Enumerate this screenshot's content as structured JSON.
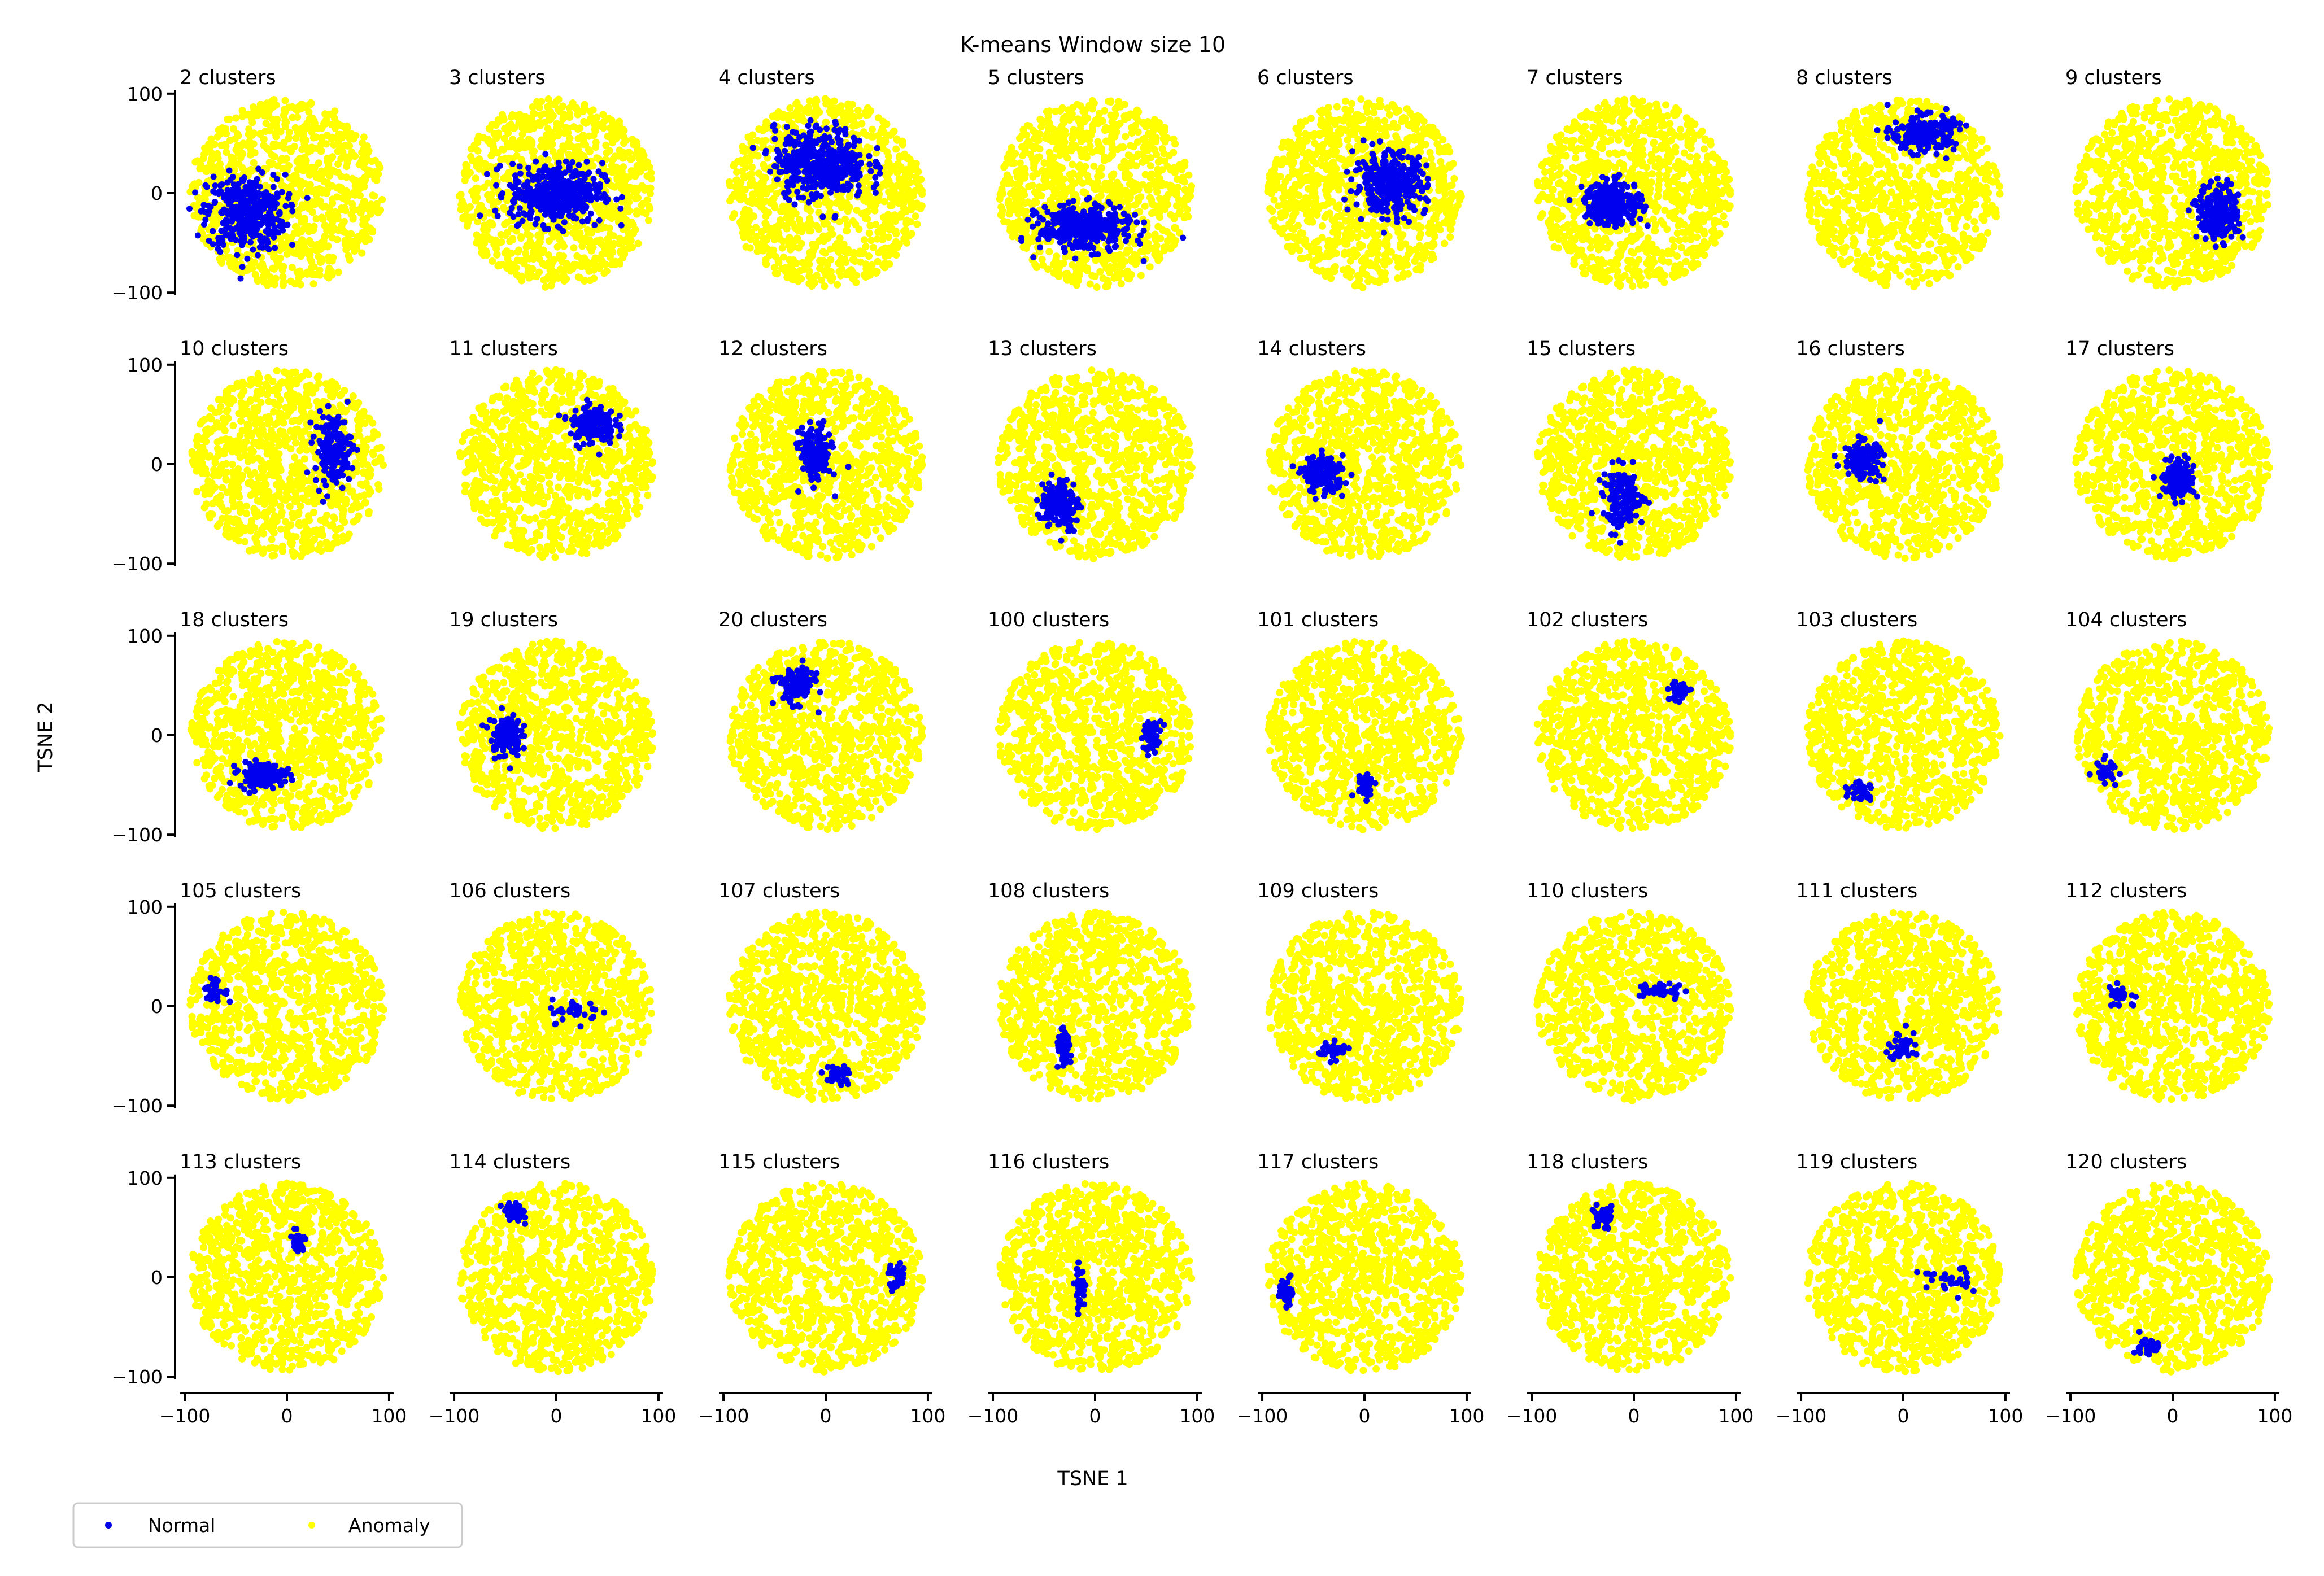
{
  "chart_data": {
    "type": "scatter",
    "title": "K-means Window size 10",
    "xlabel": "TSNE 1",
    "ylabel": "TSNE 2",
    "xlim": [
      -105,
      105
    ],
    "ylim": [
      -105,
      105
    ],
    "xticks": [
      -100,
      0,
      100
    ],
    "yticks": [
      -100,
      0,
      100
    ],
    "xtick_labels": [
      "−100",
      "0",
      "100"
    ],
    "ytick_labels": [
      "−100",
      "0",
      "100"
    ],
    "grid": false,
    "rows": 5,
    "cols": 8,
    "legend": {
      "placement": "bottom-left",
      "entries": [
        {
          "label": "Normal",
          "color": "#0000ee"
        },
        {
          "label": "Anomaly",
          "color": "#ffff00"
        }
      ]
    },
    "series_colors": {
      "Normal": "#0000ee",
      "Anomaly": "#ffff00"
    },
    "anomaly_cloud": {
      "center": [
        0,
        0
      ],
      "radius": 95,
      "approx_points": 1000
    },
    "panels": [
      {
        "label": "2 clusters",
        "normal": {
          "center": [
            -40,
            -20
          ],
          "spread": [
            38,
            38
          ],
          "count": 380
        }
      },
      {
        "label": "3 clusters",
        "normal": {
          "center": [
            0,
            0
          ],
          "spread": [
            45,
            30
          ],
          "count": 420
        }
      },
      {
        "label": "4 clusters",
        "normal": {
          "center": [
            -5,
            30
          ],
          "spread": [
            45,
            35
          ],
          "count": 420
        }
      },
      {
        "label": "5 clusters",
        "normal": {
          "center": [
            -10,
            -35
          ],
          "spread": [
            45,
            22
          ],
          "count": 360
        }
      },
      {
        "label": "6 clusters",
        "normal": {
          "center": [
            25,
            10
          ],
          "spread": [
            35,
            30
          ],
          "count": 320
        }
      },
      {
        "label": "7 clusters",
        "normal": {
          "center": [
            -20,
            -10
          ],
          "spread": [
            28,
            22
          ],
          "count": 260
        }
      },
      {
        "label": "8 clusters",
        "normal": {
          "center": [
            20,
            60
          ],
          "spread": [
            30,
            18
          ],
          "count": 220
        }
      },
      {
        "label": "9 clusters",
        "normal": {
          "center": [
            45,
            -20
          ],
          "spread": [
            20,
            28
          ],
          "count": 220
        }
      },
      {
        "label": "10 clusters",
        "normal": {
          "center": [
            45,
            15
          ],
          "spread": [
            18,
            35
          ],
          "count": 160
        }
      },
      {
        "label": "11 clusters",
        "normal": {
          "center": [
            35,
            40
          ],
          "spread": [
            22,
            20
          ],
          "count": 150
        }
      },
      {
        "label": "12 clusters",
        "normal": {
          "center": [
            -10,
            10
          ],
          "spread": [
            15,
            28
          ],
          "count": 160
        }
      },
      {
        "label": "13 clusters",
        "normal": {
          "center": [
            -35,
            -40
          ],
          "spread": [
            18,
            25
          ],
          "count": 170
        }
      },
      {
        "label": "14 clusters",
        "normal": {
          "center": [
            -40,
            -10
          ],
          "spread": [
            20,
            18
          ],
          "count": 160
        }
      },
      {
        "label": "15 clusters",
        "normal": {
          "center": [
            -10,
            -35
          ],
          "spread": [
            20,
            30
          ],
          "count": 140
        }
      },
      {
        "label": "16 clusters",
        "normal": {
          "center": [
            -40,
            5
          ],
          "spread": [
            18,
            18
          ],
          "count": 140
        }
      },
      {
        "label": "17 clusters",
        "normal": {
          "center": [
            5,
            -15
          ],
          "spread": [
            16,
            20
          ],
          "count": 140
        }
      },
      {
        "label": "18 clusters",
        "normal": {
          "center": [
            -25,
            -40
          ],
          "spread": [
            22,
            12
          ],
          "count": 150
        }
      },
      {
        "label": "19 clusters",
        "normal": {
          "center": [
            -50,
            0
          ],
          "spread": [
            15,
            22
          ],
          "count": 120
        }
      },
      {
        "label": "20 clusters",
        "normal": {
          "center": [
            -30,
            50
          ],
          "spread": [
            18,
            18
          ],
          "count": 120
        }
      },
      {
        "label": "100 clusters",
        "normal": {
          "center": [
            55,
            0
          ],
          "spread": [
            10,
            15
          ],
          "count": 45
        }
      },
      {
        "label": "101 clusters",
        "normal": {
          "center": [
            0,
            -50
          ],
          "spread": [
            10,
            12
          ],
          "count": 40
        }
      },
      {
        "label": "102 clusters",
        "normal": {
          "center": [
            45,
            45
          ],
          "spread": [
            10,
            10
          ],
          "count": 45
        }
      },
      {
        "label": "103 clusters",
        "normal": {
          "center": [
            -40,
            -55
          ],
          "spread": [
            12,
            10
          ],
          "count": 40
        }
      },
      {
        "label": "104 clusters",
        "normal": {
          "center": [
            -65,
            -35
          ],
          "spread": [
            12,
            12
          ],
          "count": 30
        }
      },
      {
        "label": "105 clusters",
        "normal": {
          "center": [
            -70,
            15
          ],
          "spread": [
            12,
            12
          ],
          "count": 35
        }
      },
      {
        "label": "106 clusters",
        "normal": {
          "center": [
            20,
            -5
          ],
          "spread": [
            25,
            12
          ],
          "count": 35
        }
      },
      {
        "label": "107 clusters",
        "normal": {
          "center": [
            10,
            -70
          ],
          "spread": [
            15,
            10
          ],
          "count": 35
        }
      },
      {
        "label": "108 clusters",
        "normal": {
          "center": [
            -30,
            -45
          ],
          "spread": [
            8,
            18
          ],
          "count": 40
        }
      },
      {
        "label": "109 clusters",
        "normal": {
          "center": [
            -30,
            -45
          ],
          "spread": [
            15,
            8
          ],
          "count": 40
        }
      },
      {
        "label": "110 clusters",
        "normal": {
          "center": [
            25,
            15
          ],
          "spread": [
            25,
            8
          ],
          "count": 40
        }
      },
      {
        "label": "111 clusters",
        "normal": {
          "center": [
            0,
            -40
          ],
          "spread": [
            15,
            15
          ],
          "count": 40
        }
      },
      {
        "label": "112 clusters",
        "normal": {
          "center": [
            -50,
            10
          ],
          "spread": [
            18,
            12
          ],
          "count": 30
        }
      },
      {
        "label": "113 clusters",
        "normal": {
          "center": [
            10,
            35
          ],
          "spread": [
            8,
            12
          ],
          "count": 35
        }
      },
      {
        "label": "114 clusters",
        "normal": {
          "center": [
            -40,
            65
          ],
          "spread": [
            12,
            10
          ],
          "count": 30
        }
      },
      {
        "label": "115 clusters",
        "normal": {
          "center": [
            70,
            0
          ],
          "spread": [
            8,
            15
          ],
          "count": 30
        }
      },
      {
        "label": "116 clusters",
        "normal": {
          "center": [
            -15,
            -10
          ],
          "spread": [
            5,
            20
          ],
          "count": 35
        }
      },
      {
        "label": "117 clusters",
        "normal": {
          "center": [
            -75,
            -15
          ],
          "spread": [
            8,
            15
          ],
          "count": 30
        }
      },
      {
        "label": "118 clusters",
        "normal": {
          "center": [
            -30,
            60
          ],
          "spread": [
            12,
            12
          ],
          "count": 35
        }
      },
      {
        "label": "119 clusters",
        "normal": {
          "center": [
            40,
            -5
          ],
          "spread": [
            25,
            15
          ],
          "count": 30
        }
      },
      {
        "label": "120 clusters",
        "normal": {
          "center": [
            -25,
            -70
          ],
          "spread": [
            12,
            10
          ],
          "count": 30
        }
      }
    ]
  }
}
